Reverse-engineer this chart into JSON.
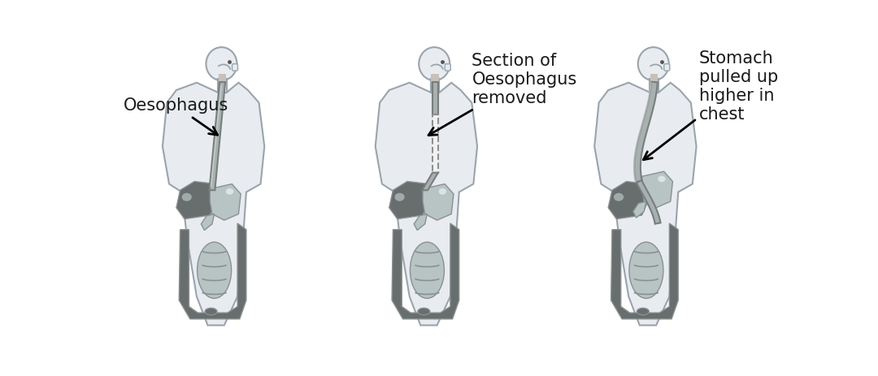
{
  "background_color": "#ffffff",
  "body_fill_color": "#e8ecf0",
  "body_outline_color": "#9aa4ad",
  "organ_dark_color": "#686e6e",
  "organ_mid_color": "#8a9090",
  "organ_light_color": "#b8c4c4",
  "organ_highlight_color": "#d4dcdc",
  "esophagus_fill": "#a8b0b0",
  "esophagus_edge": "#787e7e",
  "text_color": "#1a1a1a",
  "label1": "Oesophagus",
  "label2_line1": "Section of",
  "label2_line2": "Oesophagus",
  "label2_line3": "removed",
  "label3_line1": "Stomach",
  "label3_line2": "pulled up",
  "label3_line3": "higher in",
  "label3_line4": "chest",
  "fig_width": 10.8,
  "fig_height": 4.63,
  "dpi": 100,
  "centers": [
    160,
    500,
    850
  ],
  "label_fontsize": 15
}
